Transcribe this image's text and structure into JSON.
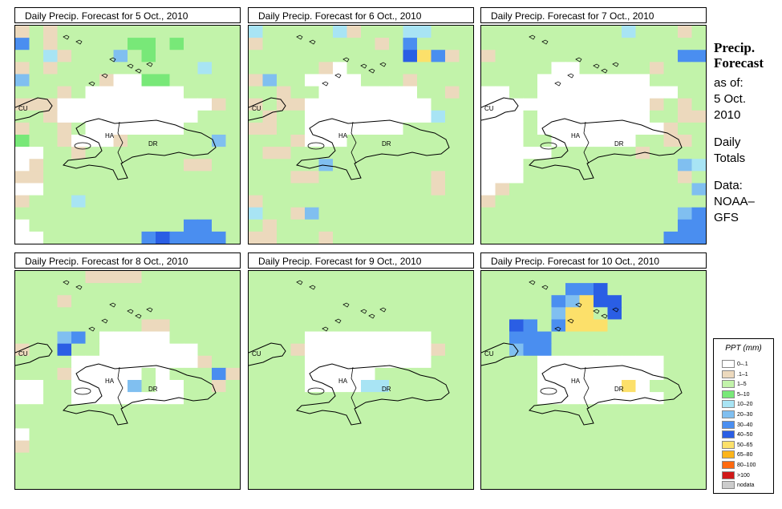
{
  "panels": [
    {
      "title": "Daily Precip. Forecast for  5 Oct., 2010"
    },
    {
      "title": "Daily Precip. Forecast for  6 Oct., 2010"
    },
    {
      "title": "Daily Precip. Forecast for  7 Oct., 2010"
    },
    {
      "title": "Daily Precip. Forecast for  8 Oct., 2010"
    },
    {
      "title": "Daily Precip. Forecast for  9 Oct., 2010"
    },
    {
      "title": "Daily Precip. Forecast for  10 Oct., 2010"
    }
  ],
  "map_labels": {
    "cu": "CU",
    "ha": "HA",
    "dr": "DR"
  },
  "sidebar": {
    "title1": "Precip.",
    "title2": "Forecast",
    "asof": "as of:",
    "date1": "5 Oct.",
    "date2": "2010",
    "totals1": "Daily",
    "totals2": "Totals",
    "data1": "Data:",
    "data2": "NOAA–",
    "data3": "GFS"
  },
  "legend": {
    "title": "PPT (mm)",
    "items": [
      {
        "label": "0–.1",
        "color": "#ffffff"
      },
      {
        "label": ".1–1",
        "color": "#ecd9bd"
      },
      {
        "label": "1–5",
        "color": "#c2f3aa"
      },
      {
        "label": "5–10",
        "color": "#78e878"
      },
      {
        "label": "10–20",
        "color": "#a8e4f4"
      },
      {
        "label": "20–30",
        "color": "#80bff0"
      },
      {
        "label": "30–40",
        "color": "#4a8ef0"
      },
      {
        "label": "40–50",
        "color": "#2a5ee4"
      },
      {
        "label": "50–65",
        "color": "#fce06a"
      },
      {
        "label": "65–80",
        "color": "#fcb41a"
      },
      {
        "label": "80–100",
        "color": "#ff6a10"
      },
      {
        "label": ">100",
        "color": "#d01818"
      },
      {
        "label": "nodata",
        "color": "#cccccc"
      }
    ]
  },
  "grids": [
    [
      "1212222222222222",
      "6212222233232222",
      "2241222523222222",
      "1212222222222422",
      "5222221003322222",
      "2221200000002222",
      "1110000000000012",
      "2210000000000222",
      "1221200000002222",
      "3221000122222252",
      "0022122222222222",
      "0122222222221122",
      "1122222222222222",
      "0022222222222222",
      "1222422222222222",
      "2222222222222222",
      "0222222222226622",
      "0022222226766662"
    ],
    [
      "4222224122244222",
      "1222222221262222",
      "2222222222278612",
      "2222210222222222",
      "1522000022212222",
      "2212200000002212",
      "1211000000000222",
      "2122000000000422",
      "1122000000022222",
      "2221000222222222",
      "2112222222222222",
      "2222252222222222",
      "2221122222222122",
      "2222222222222122",
      "1222222222222222",
      "4221522222222222",
      "2122222222222222",
      "1122212222222222"
    ],
    [
      "2222222222422212",
      "2222222222222222",
      "1222222222222266",
      "2222200222221222",
      "2222000000002222",
      "0022000000000022",
      "0000000000001212",
      "0002000000002211",
      "0002000000000122",
      "0002200000022112",
      "0000022222212222",
      "0002222222222254",
      "0002222222222212",
      "0122222222222225",
      "1222222222222222",
      "2222222222222256",
      "2222222222222266",
      "2222222222222666"
    ],
    [
      "2222211112222222",
      "2222222222222222",
      "2221222222222222",
      "2222222222222222",
      "2222222221122222",
      "2225620000022222",
      "1227220000000222",
      "2222000000000122",
      "2221000002022261",
      "0022000052002212",
      "0022000000002222",
      "2222222222222222",
      "2222222222222222",
      "0222222222222222",
      "1222222222222222",
      "2222222222222222",
      "2222222222222222",
      "2222222222222222"
    ],
    [
      "2222222222222222",
      "2222222222222222",
      "2222222222222222",
      "2222222222222222",
      "2222222222222222",
      "2222000000000222",
      "2221000000000122",
      "2222000000000222",
      "2222000002222222",
      "2222000044222222",
      "2222222222222222",
      "2222222222222222",
      "2222222222222222",
      "2222222222222222",
      "2222222222222222",
      "2222222222222222",
      "2222222222222222",
      "2222222222222222"
    ],
    [
      "2222222222222222",
      "2222226672222222",
      "2222265877222222",
      "2222258827222222",
      "2276268882222222",
      "2266622222222222",
      "2256622222222222",
      "2222000000000222",
      "2222000000000222",
      "2222000000802222",
      "2222000000000222",
      "2222222222222222",
      "2222222222222222",
      "2222222222222222",
      "2222222222222222",
      "2222222222222222",
      "2222222222222222",
      "2222222222222222"
    ]
  ]
}
